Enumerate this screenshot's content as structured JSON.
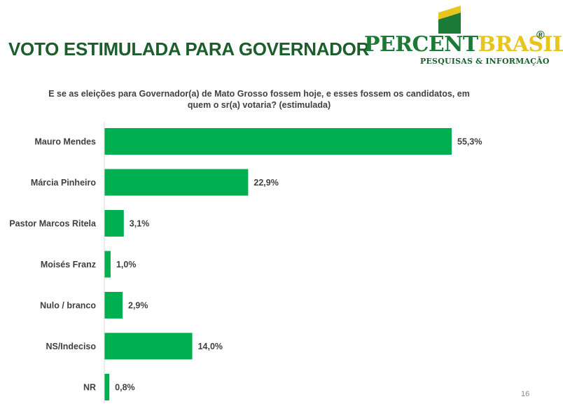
{
  "slide": {
    "title": "VOTO ESTIMULADA PARA GOVERNADOR",
    "page_number": "16"
  },
  "logo": {
    "name_part1": "PERCENT",
    "name_part2": "BRASIL",
    "registered_mark": "®",
    "tagline": "PESQUISAS & INFORMAÇÃO",
    "colors": {
      "green": "#1b7a35",
      "yellow": "#e8c51c",
      "dark_green": "#1b5e2b"
    }
  },
  "chart_data": {
    "type": "bar",
    "orientation": "horizontal",
    "title": "E se as eleições para Governador(a) de Mato Grosso fossem hoje, e esses fossem os candidatos, em quem o sr(a) votaria? (estimulada)",
    "categories": [
      "Mauro Mendes",
      "Márcia Pinheiro",
      "Pastor Marcos Ritela",
      "Moisés Franz",
      "Nulo / branco",
      "NS/Indeciso",
      "NR"
    ],
    "values": [
      55.3,
      22.9,
      3.1,
      1.0,
      2.9,
      14.0,
      0.8
    ],
    "value_labels": [
      "55,3%",
      "22,9%",
      "3,1%",
      "1,0%",
      "2,9%",
      "14,0%",
      "0,8%"
    ],
    "unit": "%",
    "xlim": [
      0,
      55.3
    ],
    "grid": false,
    "legend": "none",
    "bar_color": "#00b050"
  }
}
